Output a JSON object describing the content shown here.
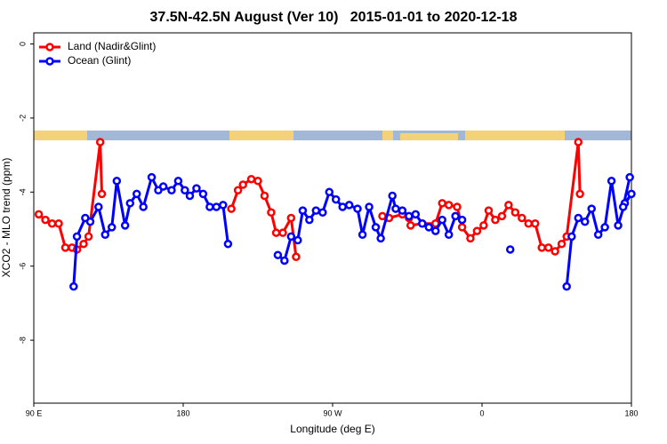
{
  "chart_data": {
    "type": "line",
    "title": "37.5N-42.5N August (Ver 10)   2015-01-01 to 2020-12-18",
    "x_label": "Longitude (deg E)",
    "y_label": "XCO2 - MLO trend (ppm)",
    "xlim": [
      90,
      450
    ],
    "ylim": [
      -9.7,
      0.3
    ],
    "xticks": [
      {
        "value": 90,
        "label": "90 E"
      },
      180,
      {
        "value": 270,
        "label": "90 W"
      },
      {
        "value": 360,
        "label": "0"
      },
      {
        "value": 450,
        "label": "180"
      }
    ],
    "yticks": [
      0,
      -2,
      -4,
      -6,
      -8
    ],
    "legend": "top-left",
    "series": [
      {
        "name": "Land (Nadir&Glint)",
        "color": "#ff0000",
        "x": [
          93,
          97,
          101,
          105,
          109,
          113,
          116,
          120,
          123,
          130,
          131,
          null,
          209,
          213,
          216,
          221,
          225,
          229,
          233,
          236,
          240,
          245,
          248,
          null,
          300,
          304,
          312,
          316,
          317,
          324,
          332,
          336,
          340,
          345,
          348,
          353,
          357,
          361,
          364,
          368,
          372,
          376,
          380,
          384,
          388,
          392,
          396,
          400,
          404,
          408,
          411,
          418,
          419
        ],
        "values": [
          -4.6,
          -4.75,
          -4.85,
          -4.85,
          -5.5,
          -5.5,
          -5.55,
          -5.4,
          -5.2,
          -2.65,
          -4.05,
          null,
          -4.45,
          -3.95,
          -3.8,
          -3.65,
          -3.7,
          -4.1,
          -4.55,
          -5.1,
          -5.1,
          -4.7,
          -5.75,
          null,
          -4.65,
          -4.7,
          -4.6,
          -4.7,
          -4.9,
          -4.85,
          -4.85,
          -4.3,
          -4.35,
          -4.4,
          -4.95,
          -5.25,
          -5.05,
          -4.9,
          -4.5,
          -4.75,
          -4.65,
          -4.35,
          -4.55,
          -4.7,
          -4.85,
          -4.85,
          -5.5,
          -5.5,
          -5.6,
          -5.4,
          -5.2,
          -2.65,
          -4.05
        ]
      },
      {
        "name": "Ocean (Glint)",
        "color": "#0000ff",
        "x": [
          114,
          116,
          121,
          124,
          129,
          133,
          137,
          140,
          145,
          148,
          152,
          156,
          161,
          165,
          168,
          173,
          177,
          181,
          184,
          188,
          192,
          196,
          200,
          204,
          207,
          null,
          237,
          241,
          245,
          249,
          252,
          256,
          260,
          264,
          268,
          272,
          276,
          280,
          285,
          288,
          292,
          296,
          299,
          306,
          308,
          312,
          316,
          320,
          324,
          328,
          332,
          336,
          340,
          344,
          348,
          null,
          377,
          null,
          411,
          414,
          418,
          422,
          426,
          430,
          434,
          438,
          442,
          446,
          450,
          445,
          449
        ],
        "values": [
          -6.55,
          -5.2,
          -4.7,
          -4.8,
          -4.4,
          -5.15,
          -4.95,
          -3.7,
          -4.9,
          -4.3,
          -4.05,
          -4.4,
          -3.6,
          -3.95,
          -3.85,
          -3.95,
          -3.7,
          -3.95,
          -4.1,
          -3.9,
          -4.05,
          -4.4,
          -4.4,
          -4.35,
          -5.4,
          null,
          -5.7,
          -5.85,
          -5.2,
          -5.3,
          -4.5,
          -4.75,
          -4.5,
          -4.55,
          -4.0,
          -4.2,
          -4.4,
          -4.35,
          -4.45,
          -5.15,
          -4.4,
          -4.95,
          -5.25,
          -4.1,
          -4.45,
          -4.5,
          -4.65,
          -4.6,
          -4.85,
          -4.95,
          -5.05,
          -4.75,
          -5.15,
          -4.65,
          -4.75,
          null,
          -5.55,
          null,
          -6.55,
          -5.2,
          -4.7,
          -4.8,
          -4.45,
          -5.15,
          -4.95,
          -3.7,
          -4.9,
          -4.3,
          -4.05,
          -4.4,
          -3.6
        ]
      }
    ]
  }
}
